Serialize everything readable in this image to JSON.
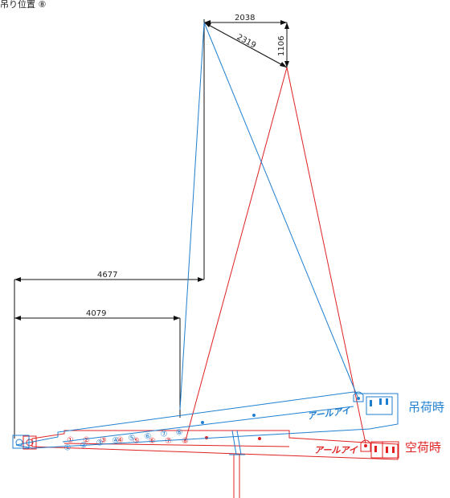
{
  "title": "吊り位置 ⑧",
  "dimensions": {
    "top_width": "2038",
    "diagonal": "2319",
    "vertical": "1106",
    "long_horizontal": "4677",
    "short_horizontal": "4079"
  },
  "labels": {
    "loaded": "吊荷時",
    "empty": "空荷時"
  },
  "brand_logo": "アールアイ",
  "position_markers": [
    "①",
    "②",
    "③",
    "④",
    "⑤",
    "⑥",
    "⑦",
    "⑧"
  ],
  "colors": {
    "loaded": "#1f7fd0",
    "empty": "#e02020",
    "dimension": "#111111"
  }
}
